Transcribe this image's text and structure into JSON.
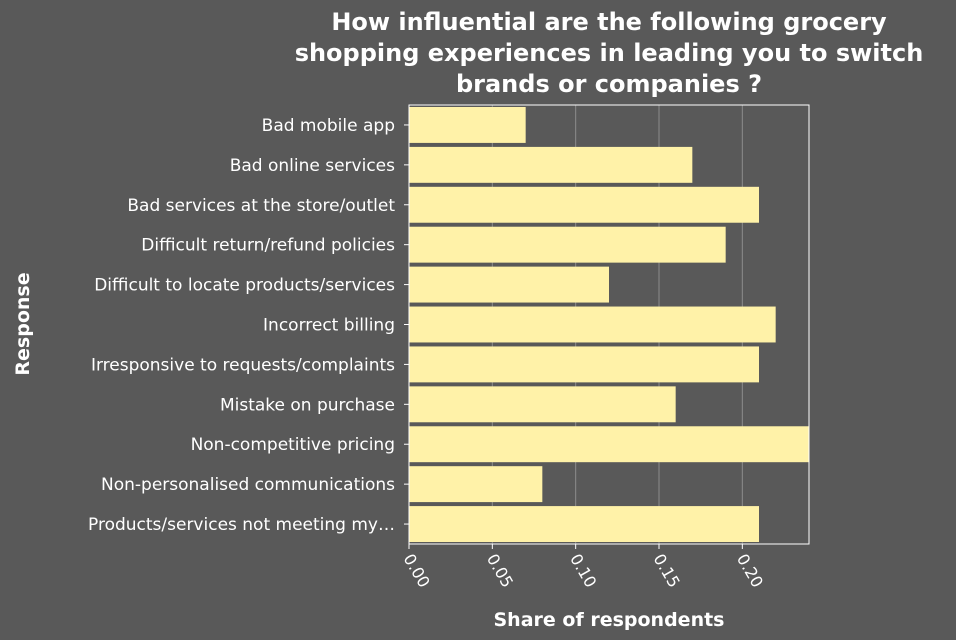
{
  "chart_data": {
    "type": "bar",
    "orientation": "horizontal",
    "title": [
      "How influential are the following grocery",
      "shopping experiences in leading you to switch",
      "brands or companies ?"
    ],
    "xlabel": "Share of respondents",
    "ylabel": "Response",
    "xlim": [
      0,
      0.24
    ],
    "xticks": [
      "0.00",
      "0.05",
      "0.10",
      "0.15",
      "0.20"
    ],
    "xtick_values": [
      0,
      0.05,
      0.1,
      0.15,
      0.2
    ],
    "grid": true,
    "bar_color": "#fff2a8",
    "background_color": "#595959",
    "categories": [
      "Bad mobile app",
      "Bad online services",
      "Bad services at the store/outlet",
      "Difficult return/refund policies",
      "Difficult to locate products/services",
      "Incorrect billing",
      "Irresponsive to requests/complaints",
      "Mistake on purchase",
      "Non-competitive pricing",
      "Non-personalised communications",
      "Products/services not meeting my…"
    ],
    "values": [
      0.07,
      0.17,
      0.21,
      0.19,
      0.12,
      0.22,
      0.21,
      0.16,
      0.24,
      0.08,
      0.21
    ]
  }
}
